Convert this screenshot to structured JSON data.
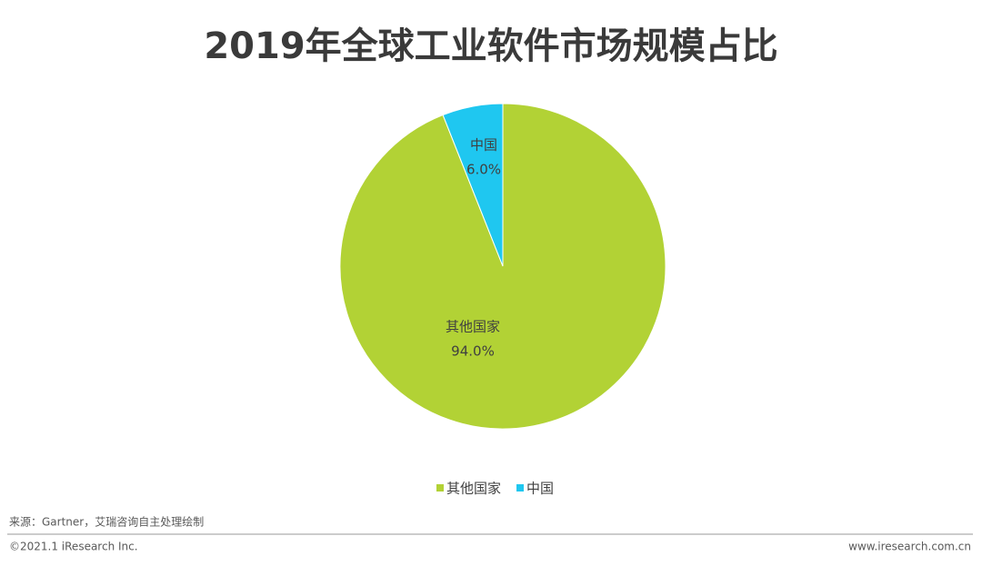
{
  "chart_data": {
    "type": "pie",
    "title": "2019年全球工业软件市场规模占比",
    "categories": [
      "其他国家",
      "中国"
    ],
    "values": [
      94.0,
      6.0
    ],
    "value_labels": [
      "94.0%",
      "6.0%"
    ],
    "colors": [
      "#b2d235",
      "#1fc7f0"
    ]
  },
  "footer": {
    "source": "来源：Gartner，艾瑞咨询自主处理绘制",
    "copyright": "©2021.1 iResearch Inc.",
    "website": "www.iresearch.com.cn"
  }
}
